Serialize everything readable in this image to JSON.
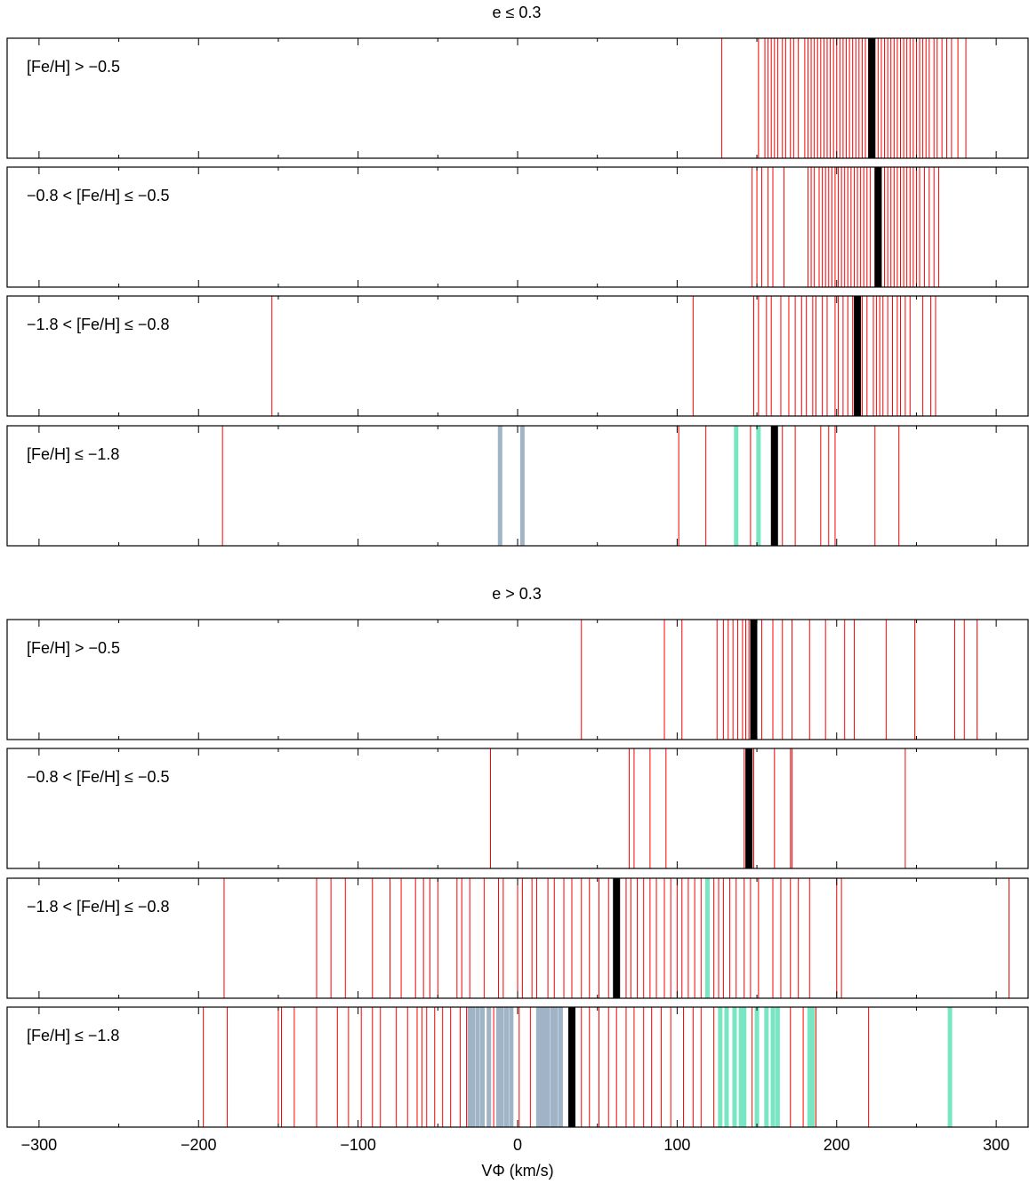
{
  "chart_data": [
    {
      "type": "rug",
      "title": "e ≤ 0.3",
      "label": "[Fe/H] > −0.5",
      "xlim": [
        -320,
        320
      ],
      "xticks": [
        {
          "value": -300,
          "label": "−300"
        },
        {
          "value": -200,
          "label": "−200"
        },
        {
          "value": -100,
          "label": "−100"
        },
        0,
        100,
        200,
        300
      ],
      "xminorticks": [
        -250,
        -150,
        -50,
        50,
        150,
        250
      ],
      "series": [
        {
          "color": "#ff0000",
          "values": [
            128,
            151,
            155,
            157,
            159,
            161,
            163,
            166,
            168,
            171,
            173,
            176,
            180,
            182,
            184,
            186,
            188,
            190,
            192,
            194,
            196,
            198,
            200,
            202,
            204,
            206,
            208,
            210,
            212,
            214,
            216,
            218,
            220,
            224,
            226,
            228,
            230,
            232,
            234,
            236,
            238,
            240,
            242,
            244,
            246,
            248,
            250,
            252,
            254,
            256,
            258,
            261,
            263,
            266,
            269,
            272,
            276,
            281
          ]
        },
        {
          "color": "#000000",
          "values": [
            222
          ]
        }
      ]
    },
    {
      "type": "rug",
      "label": "−0.8 < [Fe/H] ≤ −0.5",
      "xlim": [
        -320,
        320
      ],
      "xticks": [
        {
          "value": -300,
          "label": "−300"
        },
        {
          "value": -200,
          "label": "−200"
        },
        {
          "value": -100,
          "label": "−100"
        },
        0,
        100,
        200,
        300
      ],
      "xminorticks": [
        -250,
        -150,
        -50,
        50,
        150,
        250
      ],
      "series": [
        {
          "color": "#ff0000",
          "values": [
            147,
            150,
            153,
            157,
            160,
            167,
            182,
            184,
            186,
            189,
            191,
            193,
            195,
            197,
            199,
            201,
            203,
            205,
            207,
            209,
            211,
            213,
            215,
            217,
            219,
            221,
            224,
            228,
            230,
            232,
            234,
            236,
            238,
            240,
            242,
            244,
            246,
            248,
            250,
            252,
            255,
            258,
            261,
            264
          ]
        },
        {
          "color": "#000000",
          "values": [
            226
          ]
        }
      ]
    },
    {
      "type": "rug",
      "label": "−1.8 < [Fe/H] ≤ −0.8",
      "xlim": [
        -320,
        320
      ],
      "xticks": [
        {
          "value": -300,
          "label": "−300"
        },
        {
          "value": -200,
          "label": "−200"
        },
        {
          "value": -100,
          "label": "−100"
        },
        0,
        100,
        200,
        300
      ],
      "xminorticks": [
        -250,
        -150,
        -50,
        50,
        150,
        250
      ],
      "series": [
        {
          "color": "#ff0000",
          "values": [
            -154,
            110,
            148,
            151,
            156,
            159,
            165,
            170,
            174,
            178,
            181,
            185,
            187,
            191,
            194,
            199,
            201,
            204,
            207,
            210,
            216,
            219,
            223,
            225,
            227,
            229,
            232,
            235,
            238,
            240,
            243,
            246,
            254,
            259,
            262
          ]
        },
        {
          "color": "#000000",
          "values": [
            213
          ]
        }
      ]
    },
    {
      "type": "rug",
      "label": "[Fe/H] ≤ −1.8",
      "xlim": [
        -320,
        320
      ],
      "xticks": [
        {
          "value": -300,
          "label": "−300"
        },
        {
          "value": -200,
          "label": "−200"
        },
        {
          "value": -100,
          "label": "−100"
        },
        0,
        100,
        200,
        300
      ],
      "xminorticks": [
        -250,
        -150,
        -50,
        50,
        150,
        250
      ],
      "series": [
        {
          "color": "#ff0000",
          "values": [
            -185,
            101,
            118,
            146,
            166,
            174,
            190,
            195,
            199,
            224,
            239
          ]
        },
        {
          "color": "#a0b4c8",
          "values": [
            -11,
            3
          ]
        },
        {
          "color": "#78e6c3",
          "values": [
            137,
            151
          ]
        },
        {
          "color": "#000000",
          "values": [
            161
          ]
        }
      ]
    },
    {
      "type": "rug",
      "title": "e > 0.3",
      "label": "[Fe/H] > −0.5",
      "xlim": [
        -320,
        320
      ],
      "xticks": [
        {
          "value": -300,
          "label": "−300"
        },
        {
          "value": -200,
          "label": "−200"
        },
        {
          "value": -100,
          "label": "−100"
        },
        0,
        100,
        200,
        300
      ],
      "xminorticks": [
        -250,
        -150,
        -50,
        50,
        150,
        250
      ],
      "series": [
        {
          "color": "#ff0000",
          "values": [
            40,
            92,
            103,
            125,
            129,
            132,
            135,
            138,
            141,
            143,
            145,
            153,
            160,
            166,
            172,
            183,
            193,
            205,
            211,
            231,
            249,
            274,
            280,
            288
          ]
        },
        {
          "color": "#000000",
          "values": [
            148
          ]
        }
      ]
    },
    {
      "type": "rug",
      "label": "−0.8 < [Fe/H] ≤ −0.5",
      "xlim": [
        -320,
        320
      ],
      "xticks": [
        {
          "value": -300,
          "label": "−300"
        },
        {
          "value": -200,
          "label": "−200"
        },
        {
          "value": -100,
          "label": "−100"
        },
        0,
        100,
        200,
        300
      ],
      "xminorticks": [
        -250,
        -150,
        -50,
        50,
        150,
        250
      ],
      "series": [
        {
          "color": "#ff0000",
          "values": [
            -17,
            70,
            73,
            83,
            93,
            142,
            148,
            161,
            171,
            172,
            243
          ]
        },
        {
          "color": "#000000",
          "values": [
            145
          ]
        }
      ]
    },
    {
      "type": "rug",
      "label": "−1.8 < [Fe/H] ≤ −0.8",
      "xlim": [
        -320,
        320
      ],
      "xticks": [
        {
          "value": -300,
          "label": "−300"
        },
        {
          "value": -200,
          "label": "−200"
        },
        {
          "value": -100,
          "label": "−100"
        },
        0,
        100,
        200,
        300
      ],
      "xminorticks": [
        -250,
        -150,
        -50,
        50,
        150,
        250
      ],
      "series": [
        {
          "color": "#ff0000",
          "values": [
            -184,
            -126,
            -117,
            -108,
            -91,
            -80,
            -73,
            -64,
            -59,
            -55,
            -50,
            -38,
            -35,
            -30,
            -21,
            -12,
            -9,
            0,
            3,
            9,
            12,
            19,
            23,
            29,
            34,
            40,
            45,
            51,
            57,
            68,
            71,
            75,
            79,
            83,
            87,
            92,
            96,
            100,
            103,
            107,
            111,
            115,
            123,
            126,
            129,
            133,
            137,
            142,
            146,
            151,
            160,
            165,
            171,
            176,
            183,
            200,
            203,
            308
          ]
        },
        {
          "color": "#78e6c3",
          "values": [
            119
          ]
        },
        {
          "color": "#000000",
          "values": [
            62
          ]
        }
      ]
    },
    {
      "type": "rug",
      "label": "[Fe/H] ≤ −1.8",
      "xlabel": "VΦ (km/s)",
      "xlim": [
        -320,
        320
      ],
      "xticks": [
        {
          "value": -300,
          "label": "−300"
        },
        {
          "value": -200,
          "label": "−200"
        },
        {
          "value": -100,
          "label": "−100"
        },
        0,
        100,
        200,
        300
      ],
      "xminorticks": [
        -250,
        -150,
        -50,
        50,
        150,
        250
      ],
      "series": [
        {
          "color": "#ff0000",
          "values": [
            -197,
            -182,
            -150,
            -148,
            -140,
            -126,
            -113,
            -106,
            -98,
            -91,
            -86,
            -76,
            -69,
            -63,
            -60,
            -57,
            -52,
            -47,
            -42,
            -36,
            -32,
            -19,
            -15,
            -5,
            1,
            8,
            12,
            26,
            40,
            45,
            51,
            57,
            62,
            68,
            73,
            79,
            84,
            90,
            96,
            104,
            110,
            115,
            123,
            131,
            147,
            171,
            179,
            187,
            220
          ]
        },
        {
          "color": "#a0b4c8",
          "values": [
            -30,
            -28,
            -25,
            -22,
            -18,
            -12,
            -10,
            -7,
            -4,
            13,
            15,
            17,
            19,
            22,
            24,
            27
          ]
        },
        {
          "color": "#78e6c3",
          "values": [
            127,
            131,
            136,
            140,
            142,
            150,
            156,
            160,
            163,
            183,
            185,
            271
          ]
        },
        {
          "color": "#000000",
          "values": [
            34
          ]
        }
      ]
    }
  ]
}
